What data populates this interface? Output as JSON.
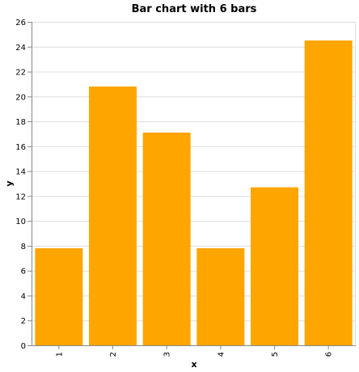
{
  "chart_data": {
    "type": "bar",
    "title": "Bar chart with 6 bars",
    "xlabel": "x",
    "ylabel": "y",
    "categories": [
      "1",
      "2",
      "3",
      "4",
      "5",
      "6"
    ],
    "values": [
      7.8,
      20.8,
      17.1,
      7.8,
      12.7,
      24.5
    ],
    "ylim": [
      0,
      26
    ],
    "yticks": [
      0,
      2,
      4,
      6,
      8,
      10,
      12,
      14,
      16,
      18,
      20,
      22,
      24,
      26
    ],
    "grid": true,
    "bar_color": "#ffa500",
    "grid_color": "#dddddd",
    "axis_color": "#888888"
  }
}
